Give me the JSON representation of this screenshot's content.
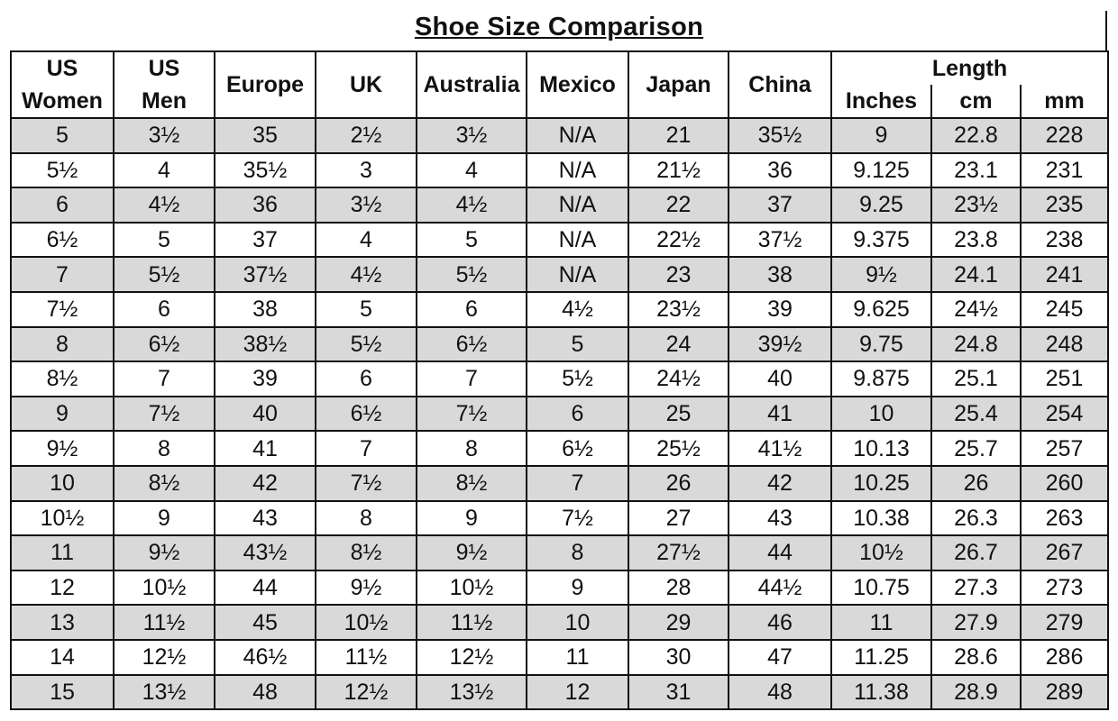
{
  "title": "Shoe Size Comparison",
  "headers": {
    "us_women": [
      "US",
      "Women"
    ],
    "us_men": [
      "US",
      "Men"
    ],
    "europe": "Europe",
    "uk": "UK",
    "australia": "Australia",
    "mexico": "Mexico",
    "japan": "Japan",
    "china": "China",
    "length": "Length",
    "inches": "Inches",
    "cm": "cm",
    "mm": "mm"
  },
  "rows": [
    [
      "5",
      "3½",
      "35",
      "2½",
      "3½",
      "N/A",
      "21",
      "35½",
      "9",
      "22.8",
      "228"
    ],
    [
      "5½",
      "4",
      "35½",
      "3",
      "4",
      "N/A",
      "21½",
      "36",
      "9.125",
      "23.1",
      "231"
    ],
    [
      "6",
      "4½",
      "36",
      "3½",
      "4½",
      "N/A",
      "22",
      "37",
      "9.25",
      "23½",
      "235"
    ],
    [
      "6½",
      "5",
      "37",
      "4",
      "5",
      "N/A",
      "22½",
      "37½",
      "9.375",
      "23.8",
      "238"
    ],
    [
      "7",
      "5½",
      "37½",
      "4½",
      "5½",
      "N/A",
      "23",
      "38",
      "9½",
      "24.1",
      "241"
    ],
    [
      "7½",
      "6",
      "38",
      "5",
      "6",
      "4½",
      "23½",
      "39",
      "9.625",
      "24½",
      "245"
    ],
    [
      "8",
      "6½",
      "38½",
      "5½",
      "6½",
      "5",
      "24",
      "39½",
      "9.75",
      "24.8",
      "248"
    ],
    [
      "8½",
      "7",
      "39",
      "6",
      "7",
      "5½",
      "24½",
      "40",
      "9.875",
      "25.1",
      "251"
    ],
    [
      "9",
      "7½",
      "40",
      "6½",
      "7½",
      "6",
      "25",
      "41",
      "10",
      "25.4",
      "254"
    ],
    [
      "9½",
      "8",
      "41",
      "7",
      "8",
      "6½",
      "25½",
      "41½",
      "10.13",
      "25.7",
      "257"
    ],
    [
      "10",
      "8½",
      "42",
      "7½",
      "8½",
      "7",
      "26",
      "42",
      "10.25",
      "26",
      "260"
    ],
    [
      "10½",
      "9",
      "43",
      "8",
      "9",
      "7½",
      "27",
      "43",
      "10.38",
      "26.3",
      "263"
    ],
    [
      "11",
      "9½",
      "43½",
      "8½",
      "9½",
      "8",
      "27½",
      "44",
      "10½",
      "26.7",
      "267"
    ],
    [
      "12",
      "10½",
      "44",
      "9½",
      "10½",
      "9",
      "28",
      "44½",
      "10.75",
      "27.3",
      "273"
    ],
    [
      "13",
      "11½",
      "45",
      "10½",
      "11½",
      "10",
      "29",
      "46",
      "11",
      "27.9",
      "279"
    ],
    [
      "14",
      "12½",
      "46½",
      "11½",
      "12½",
      "11",
      "30",
      "47",
      "11.25",
      "28.6",
      "286"
    ],
    [
      "15",
      "13½",
      "48",
      "12½",
      "13½",
      "12",
      "31",
      "48",
      "11.38",
      "28.9",
      "289"
    ]
  ],
  "colors": {
    "shaded_row": "#d9d9d9",
    "plain_row": "#ffffff",
    "border": "#111111"
  }
}
